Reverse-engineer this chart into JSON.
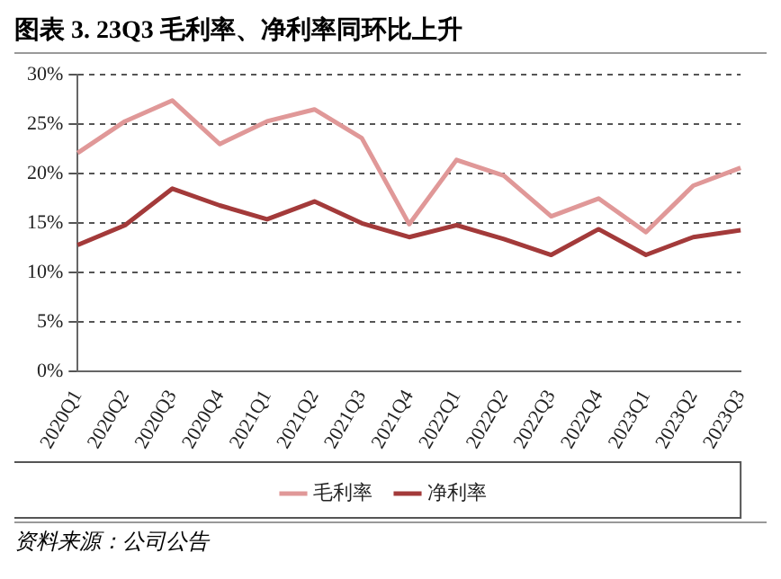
{
  "chart_data": {
    "type": "line",
    "title": "图表 3. 23Q3 毛利率、净利率同环比上升",
    "categories": [
      "2020Q1",
      "2020Q2",
      "2020Q3",
      "2020Q4",
      "2021Q1",
      "2021Q2",
      "2021Q3",
      "2021Q4",
      "2022Q1",
      "2022Q2",
      "2022Q3",
      "2022Q4",
      "2023Q1",
      "2023Q2",
      "2023Q3"
    ],
    "series": [
      {
        "name": "毛利率",
        "color": "#e09898",
        "values": [
          22.1,
          25.3,
          27.4,
          23.0,
          25.3,
          26.5,
          23.6,
          14.9,
          21.4,
          19.8,
          15.7,
          17.5,
          14.1,
          18.8,
          20.6
        ]
      },
      {
        "name": "净利率",
        "color": "#a33a3a",
        "values": [
          12.8,
          14.8,
          18.5,
          16.8,
          15.4,
          17.2,
          15.0,
          13.6,
          14.8,
          13.4,
          11.8,
          14.4,
          11.8,
          13.6,
          14.3
        ]
      }
    ],
    "ylim": [
      0,
      30
    ],
    "yticks": [
      {
        "value": 0,
        "label": "0%"
      },
      {
        "value": 5,
        "label": "5%"
      },
      {
        "value": 10,
        "label": "10%"
      },
      {
        "value": 15,
        "label": "15%"
      },
      {
        "value": 20,
        "label": "20%"
      },
      {
        "value": 25,
        "label": "25%"
      },
      {
        "value": 30,
        "label": "30%"
      }
    ],
    "grid": "y",
    "legend": "bottom",
    "marker": "none",
    "line_style": "solid",
    "annotations": [
      "资料来源：公司公告"
    ]
  }
}
